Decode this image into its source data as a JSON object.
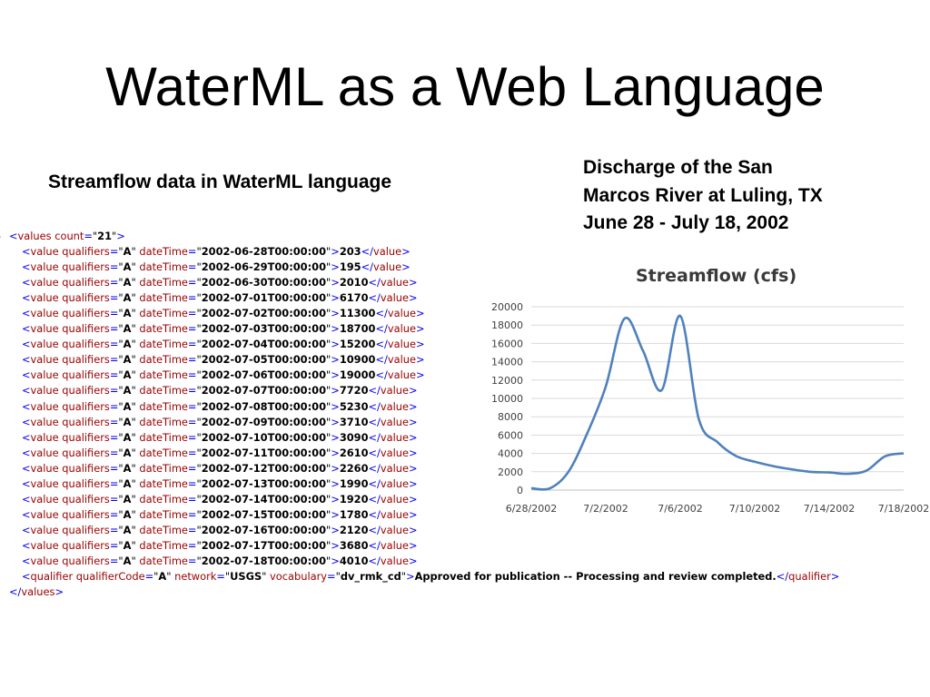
{
  "slide": {
    "title": "WaterML as a Web Language",
    "left_heading": "Streamflow data in WaterML language",
    "right_heading": "Discharge of the San Marcos River at Luling, TX June 28 - July 18, 2002"
  },
  "xml": {
    "values_open": {
      "tag": "values",
      "attr": "count",
      "value": "21"
    },
    "values": [
      {
        "qualifiers": "A",
        "dateTime": "2002-06-28T00:00:00",
        "value": "203"
      },
      {
        "qualifiers": "A",
        "dateTime": "2002-06-29T00:00:00",
        "value": "195"
      },
      {
        "qualifiers": "A",
        "dateTime": "2002-06-30T00:00:00",
        "value": "2010"
      },
      {
        "qualifiers": "A",
        "dateTime": "2002-07-01T00:00:00",
        "value": "6170"
      },
      {
        "qualifiers": "A",
        "dateTime": "2002-07-02T00:00:00",
        "value": "11300"
      },
      {
        "qualifiers": "A",
        "dateTime": "2002-07-03T00:00:00",
        "value": "18700"
      },
      {
        "qualifiers": "A",
        "dateTime": "2002-07-04T00:00:00",
        "value": "15200"
      },
      {
        "qualifiers": "A",
        "dateTime": "2002-07-05T00:00:00",
        "value": "10900"
      },
      {
        "qualifiers": "A",
        "dateTime": "2002-07-06T00:00:00",
        "value": "19000"
      },
      {
        "qualifiers": "A",
        "dateTime": "2002-07-07T00:00:00",
        "value": "7720"
      },
      {
        "qualifiers": "A",
        "dateTime": "2002-07-08T00:00:00",
        "value": "5230"
      },
      {
        "qualifiers": "A",
        "dateTime": "2002-07-09T00:00:00",
        "value": "3710"
      },
      {
        "qualifiers": "A",
        "dateTime": "2002-07-10T00:00:00",
        "value": "3090"
      },
      {
        "qualifiers": "A",
        "dateTime": "2002-07-11T00:00:00",
        "value": "2610"
      },
      {
        "qualifiers": "A",
        "dateTime": "2002-07-12T00:00:00",
        "value": "2260"
      },
      {
        "qualifiers": "A",
        "dateTime": "2002-07-13T00:00:00",
        "value": "1990"
      },
      {
        "qualifiers": "A",
        "dateTime": "2002-07-14T00:00:00",
        "value": "1920"
      },
      {
        "qualifiers": "A",
        "dateTime": "2002-07-15T00:00:00",
        "value": "1780"
      },
      {
        "qualifiers": "A",
        "dateTime": "2002-07-16T00:00:00",
        "value": "2120"
      },
      {
        "qualifiers": "A",
        "dateTime": "2002-07-17T00:00:00",
        "value": "3680"
      },
      {
        "qualifiers": "A",
        "dateTime": "2002-07-18T00:00:00",
        "value": "4010"
      }
    ],
    "qualifier": {
      "qualifierCode": "A",
      "network": "USGS",
      "vocabulary": "dv_rmk_cd",
      "text": "Approved for publication -- Processing and review completed."
    },
    "collapse_marker": "-"
  },
  "chart_data": {
    "type": "line",
    "title": "Streamflow (cfs)",
    "xlabel": "",
    "ylabel": "",
    "x": [
      "2002-06-28",
      "2002-06-29",
      "2002-06-30",
      "2002-07-01",
      "2002-07-02",
      "2002-07-03",
      "2002-07-04",
      "2002-07-05",
      "2002-07-06",
      "2002-07-07",
      "2002-07-08",
      "2002-07-09",
      "2002-07-10",
      "2002-07-11",
      "2002-07-12",
      "2002-07-13",
      "2002-07-14",
      "2002-07-15",
      "2002-07-16",
      "2002-07-17",
      "2002-07-18"
    ],
    "series": [
      {
        "values": [
          203,
          195,
          2010,
          6170,
          11300,
          18700,
          15200,
          10900,
          19000,
          7720,
          5230,
          3710,
          3090,
          2610,
          2260,
          1990,
          1920,
          1780,
          2120,
          3680,
          4010
        ]
      }
    ],
    "x_tick_labels": [
      "6/28/2002",
      "7/2/2002",
      "7/6/2002",
      "7/10/2002",
      "7/14/2002",
      "7/18/2002"
    ],
    "y_ticks": [
      0,
      2000,
      4000,
      6000,
      8000,
      10000,
      12000,
      14000,
      16000,
      18000,
      20000
    ],
    "ylim": [
      0,
      20000
    ],
    "grid": true,
    "line_color": "#4f81bd",
    "legend": "none"
  }
}
